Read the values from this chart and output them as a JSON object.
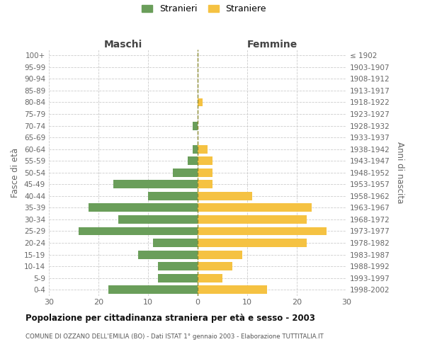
{
  "age_groups": [
    "0-4",
    "5-9",
    "10-14",
    "15-19",
    "20-24",
    "25-29",
    "30-34",
    "35-39",
    "40-44",
    "45-49",
    "50-54",
    "55-59",
    "60-64",
    "65-69",
    "70-74",
    "75-79",
    "80-84",
    "85-89",
    "90-94",
    "95-99",
    "100+"
  ],
  "birth_years": [
    "1998-2002",
    "1993-1997",
    "1988-1992",
    "1983-1987",
    "1978-1982",
    "1973-1977",
    "1968-1972",
    "1963-1967",
    "1958-1962",
    "1953-1957",
    "1948-1952",
    "1943-1947",
    "1938-1942",
    "1933-1937",
    "1928-1932",
    "1923-1927",
    "1918-1922",
    "1913-1917",
    "1908-1912",
    "1903-1907",
    "≤ 1902"
  ],
  "males": [
    18,
    8,
    8,
    12,
    9,
    24,
    16,
    22,
    10,
    17,
    5,
    2,
    1,
    0,
    1,
    0,
    0,
    0,
    0,
    0,
    0
  ],
  "females": [
    14,
    5,
    7,
    9,
    22,
    26,
    22,
    23,
    11,
    3,
    3,
    3,
    2,
    0,
    0,
    0,
    1,
    0,
    0,
    0,
    0
  ],
  "male_color": "#6a9e5a",
  "female_color": "#f5c242",
  "center_line_color": "#8a8a30",
  "grid_color": "#cccccc",
  "background_color": "#ffffff",
  "title": "Popolazione per cittadinanza straniera per età e sesso - 2003",
  "subtitle": "COMUNE DI OZZANO DELL'EMILIA (BO) - Dati ISTAT 1° gennaio 2003 - Elaborazione TUTTITALIA.IT",
  "ylabel_left": "Fasce di età",
  "ylabel_right": "Anni di nascita",
  "xlabel_left": "Maschi",
  "xlabel_right": "Femmine",
  "legend_male": "Stranieri",
  "legend_female": "Straniere",
  "xlim": 30,
  "tick_vals": [
    30,
    20,
    10,
    0,
    10,
    20,
    30
  ]
}
